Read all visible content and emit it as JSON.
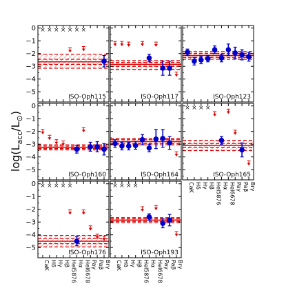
{
  "chart_data": {
    "type": "scatter",
    "ylabel": "log(L_acc/L_⊙)",
    "ylim": [
      -5.8,
      0.2
    ],
    "yticks": [
      0,
      -1,
      -2,
      -3,
      -4,
      -5
    ],
    "line_names": [
      "CaK",
      "Hδ",
      "Hγ",
      "Hβ",
      "HeI5876",
      "Hα",
      "HeI6678",
      "Paγ",
      "Paβ",
      "Brγ"
    ],
    "colors": {
      "point": "#0000cc",
      "upper_limit": "#dd0000",
      "band": "#dd0000",
      "nondetection": "#222222"
    },
    "panels": [
      {
        "name": "ISO-Oph115",
        "mean": -2.65,
        "err_inner": [
          -2.85,
          -2.45
        ],
        "band": [
          -3.15,
          -2.05
        ],
        "nondetections": [
          0,
          1,
          2,
          3,
          4,
          5,
          6
        ],
        "upper_limits": [
          [
            4,
            -1.55
          ],
          [
            6,
            -1.45
          ]
        ],
        "points": [
          [
            9,
            -2.6,
            0.45
          ]
        ]
      },
      {
        "name": "ISO-Oph117",
        "mean": -2.85,
        "err_inner": [
          -3.0,
          -2.7
        ],
        "band": [
          -3.25,
          -2.55
        ],
        "nondetections": [],
        "upper_limits": [
          [
            0,
            -1.05
          ],
          [
            1,
            -1.05
          ],
          [
            2,
            -1.1
          ],
          [
            4,
            -1.05
          ],
          [
            6,
            -1.1
          ],
          [
            9,
            -3.45
          ]
        ],
        "points": [
          [
            5,
            -2.35,
            0.3
          ],
          [
            7,
            -3.15,
            0.55
          ],
          [
            8,
            -3.15,
            0.55
          ]
        ]
      },
      {
        "name": "ISO-Oph123",
        "mean": -2.15,
        "err_inner": [
          -2.3,
          -2.0
        ],
        "band": [
          -2.45,
          -1.85
        ],
        "nondetections": [],
        "upper_limits": [],
        "points": [
          [
            0,
            -1.9,
            0.25
          ],
          [
            1,
            -2.6,
            0.3
          ],
          [
            2,
            -2.5,
            0.3
          ],
          [
            3,
            -2.4,
            0.25
          ],
          [
            4,
            -1.7,
            0.3
          ],
          [
            5,
            -2.35,
            0.3
          ],
          [
            6,
            -1.7,
            0.45
          ],
          [
            7,
            -1.95,
            0.45
          ],
          [
            8,
            -2.1,
            0.4
          ],
          [
            9,
            -2.25,
            0.35
          ]
        ]
      },
      {
        "name": "ISO-Oph160",
        "mean": -3.25,
        "err_inner": [
          -3.35,
          -3.15
        ],
        "band": [
          -3.45,
          -3.05
        ],
        "nondetections": [],
        "upper_limits": [
          [
            0,
            -1.85
          ],
          [
            1,
            -2.3
          ],
          [
            2,
            -2.65
          ],
          [
            3,
            -2.75
          ],
          [
            6,
            -1.7
          ]
        ],
        "points": [
          [
            5,
            -3.4,
            0.3
          ],
          [
            7,
            -3.2,
            0.35
          ],
          [
            8,
            -3.2,
            0.4
          ],
          [
            9,
            -3.4,
            0.45
          ]
        ]
      },
      {
        "name": "ISO-Oph164",
        "mean": -2.8,
        "err_inner": [
          -2.95,
          -2.65
        ],
        "band": [
          -3.05,
          -2.55
        ],
        "nondetections": [],
        "upper_limits": [
          [
            9,
            -3.6
          ]
        ],
        "points": [
          [
            0,
            -2.95,
            0.3
          ],
          [
            1,
            -3.15,
            0.3
          ],
          [
            2,
            -3.15,
            0.3
          ],
          [
            3,
            -3.1,
            0.3
          ],
          [
            4,
            -2.65,
            0.4
          ],
          [
            5,
            -3.3,
            0.3
          ],
          [
            6,
            -2.6,
            0.75
          ],
          [
            7,
            -2.55,
            0.7
          ],
          [
            8,
            -2.9,
            0.5
          ]
        ]
      },
      {
        "name": "ISO-Oph165",
        "mean": -3.1,
        "err_inner": [
          -3.25,
          -2.95
        ],
        "band": [
          -3.5,
          -2.7
        ],
        "nondetections": [
          0,
          1,
          2,
          3
        ],
        "upper_limits": [
          [
            4,
            -0.45
          ],
          [
            6,
            -0.25
          ],
          [
            7,
            -1.9
          ],
          [
            9,
            -4.3
          ]
        ],
        "points": [
          [
            5,
            -2.7,
            0.3
          ],
          [
            8,
            -3.45,
            0.55
          ]
        ]
      },
      {
        "name": "ISO-Oph176",
        "mean": -4.5,
        "err_inner": [
          -4.7,
          -4.3
        ],
        "band": [
          -4.95,
          -4.05
        ],
        "nondetections": [
          0,
          1,
          2,
          3,
          4
        ],
        "upper_limits": [
          [
            4,
            -2.05
          ],
          [
            6,
            -2.05
          ],
          [
            7,
            -3.3
          ],
          [
            8,
            -3.95
          ],
          [
            9,
            -4.1
          ]
        ],
        "points": [
          [
            5,
            -4.5,
            0.35
          ]
        ]
      },
      {
        "name": "ISO-Oph193",
        "mean": -2.85,
        "err_inner": [
          -2.95,
          -2.75
        ],
        "band": [
          -3.05,
          -2.65
        ],
        "nondetections": [
          0,
          1,
          2,
          3
        ],
        "upper_limits": [
          [
            4,
            -1.8
          ],
          [
            6,
            -1.7
          ],
          [
            9,
            -3.75
          ]
        ],
        "points": [
          [
            5,
            -2.6,
            0.25
          ],
          [
            7,
            -3.1,
            0.35
          ],
          [
            8,
            -2.85,
            0.45
          ]
        ]
      }
    ]
  }
}
